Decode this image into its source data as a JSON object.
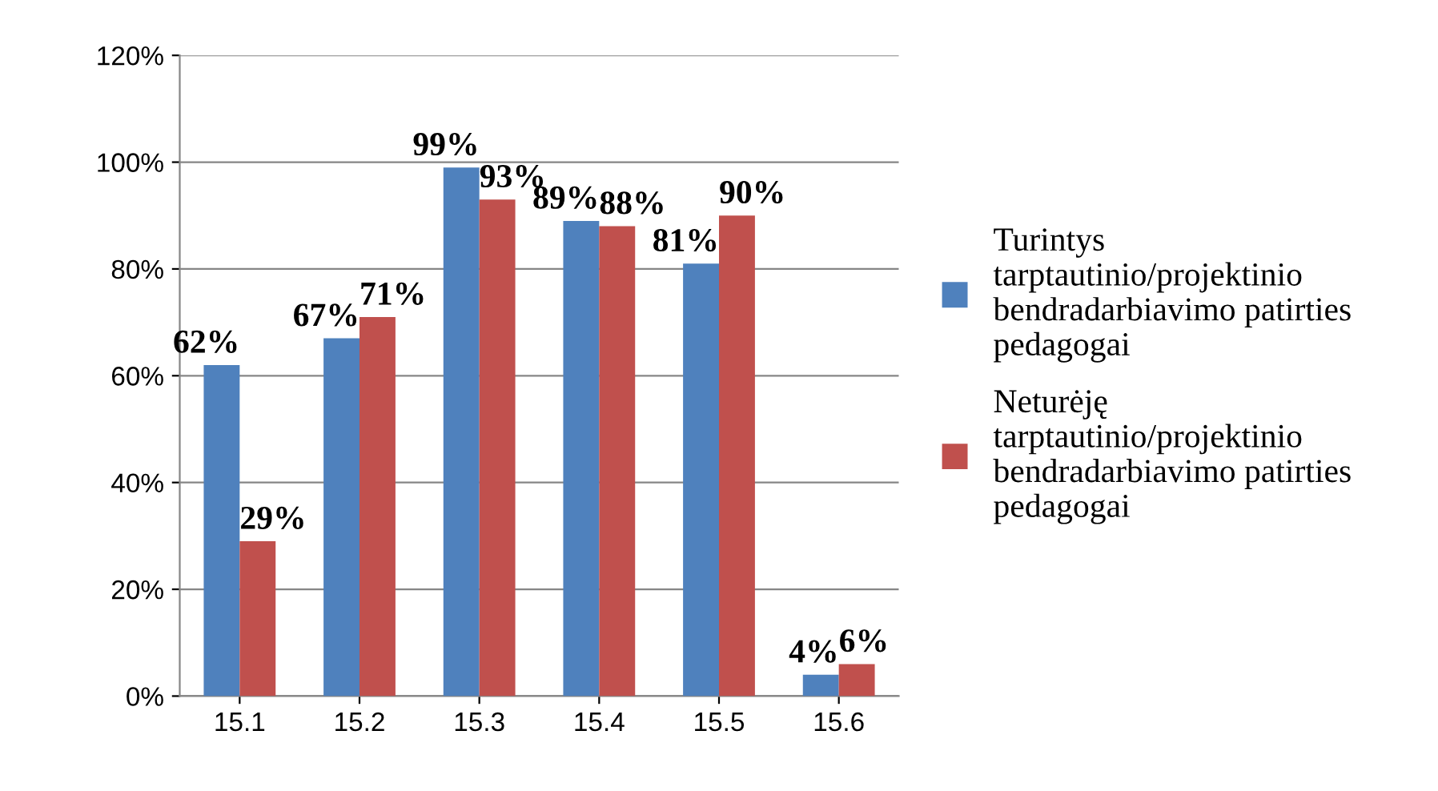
{
  "chart_data": {
    "type": "bar",
    "categories": [
      "15.1",
      "15.2",
      "15.3",
      "15.4",
      "15.5",
      "15.6"
    ],
    "series": [
      {
        "name": "Turintys tarptautinio/projektinio bendradarbiavimo patirties pedagogai",
        "color": "#4f81bd",
        "values": [
          62,
          67,
          99,
          89,
          81,
          4
        ],
        "value_labels": [
          "62%",
          "67%",
          "99%",
          "89%",
          "81%",
          "4%"
        ]
      },
      {
        "name": "Neturėję tarptautinio/projektinio bendradarbiavimo patirties pedagogai",
        "color": "#c0504d",
        "values": [
          29,
          71,
          93,
          88,
          90,
          6
        ],
        "value_labels": [
          "29%",
          "71%",
          "93%",
          "88%",
          "90%",
          "6%"
        ]
      }
    ],
    "ylim": [
      0,
      120
    ],
    "yticks": [
      {
        "value": 0,
        "label": "0%"
      },
      {
        "value": 20,
        "label": "20%"
      },
      {
        "value": 40,
        "label": "40%"
      },
      {
        "value": 60,
        "label": "60%"
      },
      {
        "value": 80,
        "label": "80%"
      },
      {
        "value": 100,
        "label": "100%"
      },
      {
        "value": 120,
        "label": "120%"
      }
    ],
    "grid": "y",
    "legend": "right"
  }
}
